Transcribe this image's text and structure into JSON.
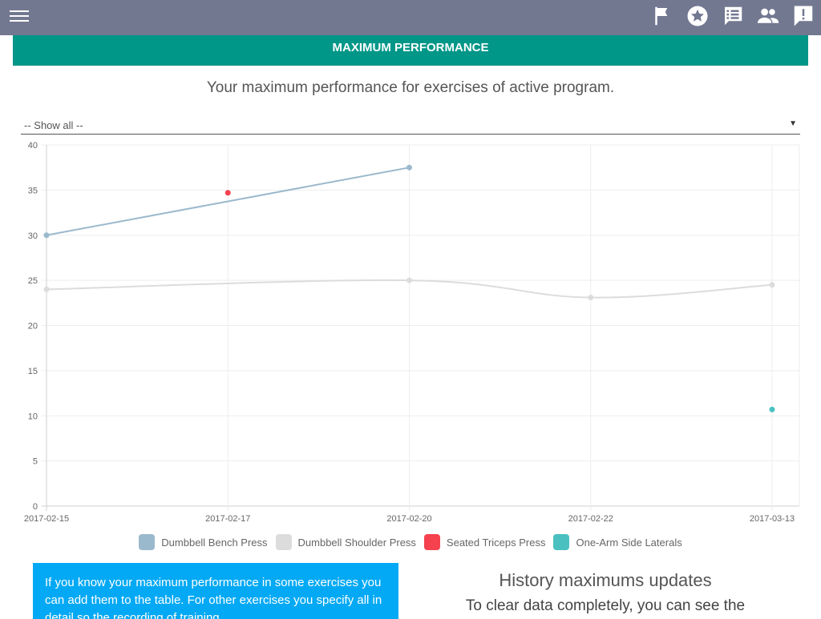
{
  "topbar": {
    "icons": [
      "flag-icon",
      "star-icon",
      "list-icon",
      "people-icon",
      "feedback-icon"
    ]
  },
  "header": {
    "title": "MAXIMUM PERFORMANCE"
  },
  "subtitle": "Your maximum performance for exercises of active program.",
  "filter": {
    "selected": "-- Show all --"
  },
  "chart_data": {
    "type": "line",
    "categories": [
      "2017-02-15",
      "2017-02-17",
      "2017-02-20",
      "2017-02-22",
      "2017-03-13"
    ],
    "ylim": [
      0,
      40
    ],
    "yticks": [
      0,
      5,
      10,
      15,
      20,
      25,
      30,
      35,
      40
    ],
    "grid": true,
    "legend_position": "bottom",
    "series": [
      {
        "name": "Dumbbell Bench Press",
        "color": "#9bb9cc",
        "values": [
          30,
          null,
          37.5,
          null,
          null
        ]
      },
      {
        "name": "Dumbbell Shoulder Press",
        "color": "#dcdcdc",
        "values": [
          24,
          null,
          25,
          23.1,
          24.5
        ]
      },
      {
        "name": "Seated Triceps Press",
        "color": "#f5424e",
        "values": [
          null,
          34.7,
          null,
          null,
          null
        ]
      },
      {
        "name": "One-Arm Side Laterals",
        "color": "#4bc0c0",
        "values": [
          null,
          null,
          null,
          null,
          10.7
        ]
      }
    ]
  },
  "info": {
    "text": "If you know your maximum performance in some exercises you can add them to the table. For other exercises you specify all in detail so the recording of training..."
  },
  "history": {
    "title": "History maximums updates",
    "text": "To clear data completely, you can see the"
  }
}
